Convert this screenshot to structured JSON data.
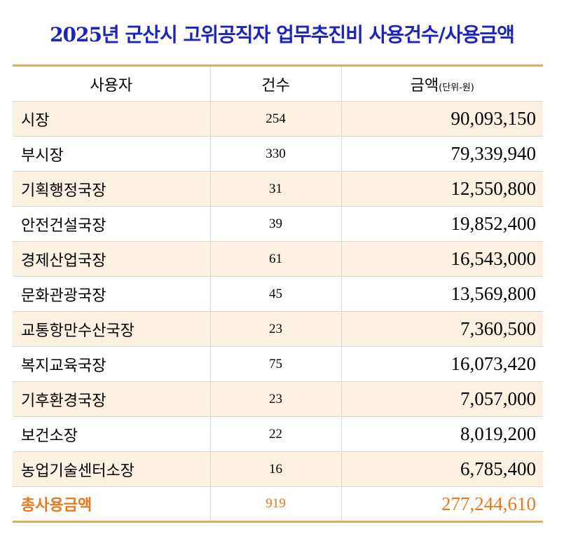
{
  "title": "2025년 군산시 고위공직자 업무추진비 사용건수/사용금액",
  "table": {
    "header": [
      "사용자",
      "건수",
      "금액"
    ],
    "header_unit": "(단위-원)",
    "rows": [
      [
        "시장",
        "254",
        "90,093,150"
      ],
      [
        "부시장",
        "330",
        "79,339,940"
      ],
      [
        "기획행정국장",
        "31",
        "12,550,800"
      ],
      [
        "안전건설국장",
        "39",
        "19,852,400"
      ],
      [
        "경제산업국장",
        "61",
        "16,543,000"
      ],
      [
        "문화관광국장",
        "45",
        "13,569,800"
      ],
      [
        "교통항만수산국장",
        "23",
        "7,360,500"
      ],
      [
        "복지교육국장",
        "75",
        "16,073,420"
      ],
      [
        "기후환경국장",
        "23",
        "7,057,000"
      ],
      [
        "보건소장",
        "22",
        "8,019,200"
      ],
      [
        "농업기술센터소장",
        "16",
        "6,785,400"
      ]
    ],
    "total": [
      "총사용금액",
      "919",
      "277,244,610"
    ]
  }
}
